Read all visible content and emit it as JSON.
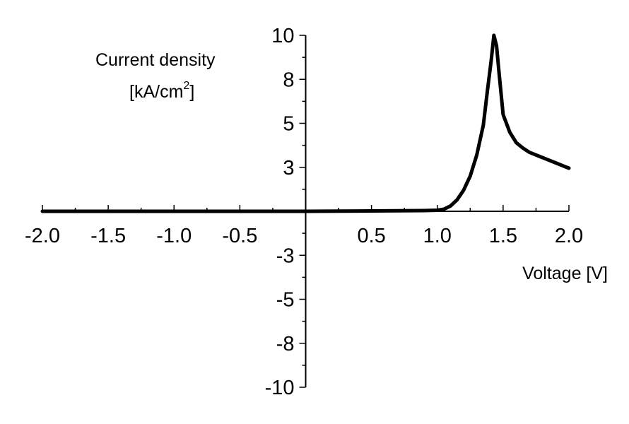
{
  "chart_data": {
    "type": "line",
    "title": "",
    "xlabel": "Voltage [V]",
    "ylabel_line1": "Current density",
    "ylabel_line2_prefix": "[kA/cm",
    "ylabel_line2_superscript": "2",
    "ylabel_line2_suffix": "]",
    "xlim": [
      -2.0,
      2.0
    ],
    "ylim": [
      -10,
      10
    ],
    "x_tick_labels": [
      "-2.0",
      "-1.5",
      "-1.0",
      "-0.5",
      "0.5",
      "1.0",
      "1.5",
      "2.0"
    ],
    "x_tick_values": [
      -2.0,
      -1.5,
      -1.0,
      -0.5,
      0.5,
      1.0,
      1.5,
      2.0
    ],
    "y_tick_labels": [
      "10",
      "8",
      "5",
      "3",
      "-3",
      "-5",
      "-8",
      "-10"
    ],
    "y_tick_values": [
      10,
      7.5,
      5,
      2.5,
      -2.5,
      -5,
      -7.5,
      -10
    ],
    "grid": false,
    "legend": "none",
    "line_color": "#000000",
    "series": [
      {
        "x": [
          -2.0,
          -1.5,
          -1.0,
          -0.5,
          0.0,
          0.5,
          0.9,
          1.0,
          1.05,
          1.1,
          1.15,
          1.2,
          1.25,
          1.3,
          1.35,
          1.38,
          1.41,
          1.43,
          1.45,
          1.47,
          1.5,
          1.55,
          1.6,
          1.65,
          1.7,
          1.75,
          1.8,
          1.85,
          1.9,
          1.95,
          2.0
        ],
        "y": [
          0.0,
          0.0,
          0.0,
          0.0,
          0.0,
          0.02,
          0.04,
          0.06,
          0.12,
          0.3,
          0.65,
          1.2,
          2.0,
          3.2,
          4.9,
          6.8,
          8.6,
          10.0,
          9.4,
          7.8,
          5.5,
          4.5,
          3.9,
          3.6,
          3.35,
          3.2,
          3.05,
          2.9,
          2.75,
          2.6,
          2.45
        ]
      }
    ]
  }
}
